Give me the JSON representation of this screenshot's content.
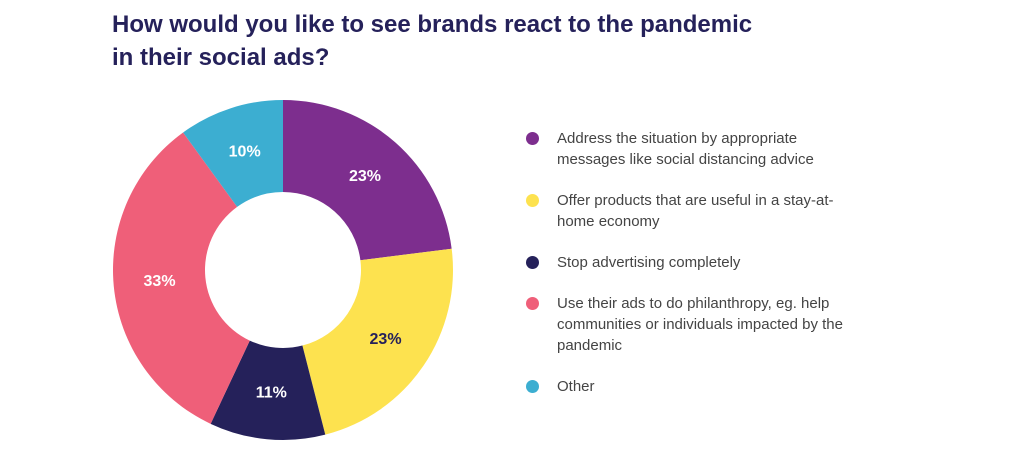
{
  "chart_data": {
    "type": "pie",
    "title": "How would you like to see brands react to the pandemic in their social ads?",
    "categories": [
      "Address the situation by appropriate messages like social distancing advice",
      "Offer products that are useful in a stay-at-home economy",
      "Stop advertising completely",
      "Use their ads to do philanthropy, eg. help communities or individuals impacted by the pandemic",
      "Other"
    ],
    "values": [
      23,
      23,
      11,
      33,
      10
    ],
    "value_labels": [
      "23%",
      "23%",
      "11%",
      "33%",
      "10%"
    ],
    "colors": [
      "#7d2e8e",
      "#fde24f",
      "#25215a",
      "#ef5f79",
      "#3caed1"
    ],
    "legend": "right"
  }
}
